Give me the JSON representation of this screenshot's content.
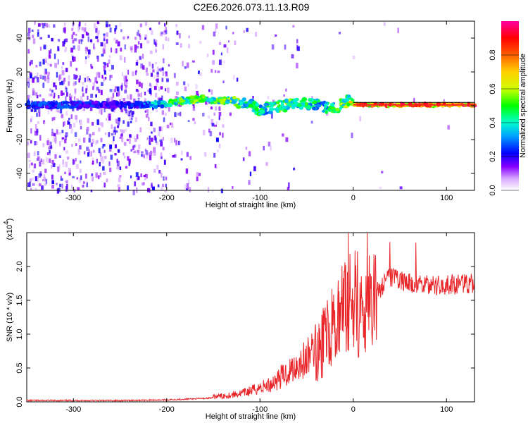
{
  "title": "C2E6.2026.073.11.13.R09",
  "chart_data": [
    {
      "type": "heatmap",
      "description_values": "spectrogram of frequency vs height; amplitude normalized 0-1",
      "xlabel": "Height of straight line (km)",
      "ylabel": "Frequency (Hz)",
      "xlim": [
        -350,
        130
      ],
      "ylim": [
        -50,
        50
      ],
      "xticks": [
        -300,
        -200,
        -100,
        0,
        100
      ],
      "yticks": [
        -40,
        -20,
        0,
        20,
        40
      ],
      "grid": false,
      "colorbar": {
        "label": "Normalized spectral amplitude",
        "range": [
          0,
          1
        ],
        "ticks": [
          "0.0",
          "0.2",
          "0.4",
          "0.6",
          "0.8"
        ],
        "colors": [
          "#ffffff",
          "#d8a8ff",
          "#8800ff",
          "#0000ff",
          "#00a0ff",
          "#00ffd0",
          "#00ff00",
          "#d0ff00",
          "#ffd000",
          "#ff6000",
          "#ff0000",
          "#ff00a0"
        ]
      },
      "ridge": {
        "x": [
          -350,
          -300,
          -250,
          -220,
          -200,
          -180,
          -160,
          -150,
          -130,
          -110,
          -100,
          -90,
          -75,
          -60,
          -45,
          -30,
          -15,
          -5,
          0,
          20,
          60,
          130
        ],
        "y": [
          0.5,
          0.5,
          0.5,
          0.5,
          1.5,
          3,
          4,
          3.5,
          2.5,
          1,
          -3,
          -1,
          0,
          1,
          1.5,
          -1,
          0,
          3,
          1,
          0.5,
          0.5,
          0.5
        ],
        "amplitude": [
          0.25,
          0.25,
          0.2,
          0.3,
          0.45,
          0.5,
          0.55,
          0.5,
          0.5,
          0.45,
          0.45,
          0.4,
          0.5,
          0.5,
          0.45,
          0.4,
          0.5,
          0.55,
          0.7,
          0.8,
          0.85,
          0.85
        ]
      }
    },
    {
      "type": "line",
      "xlabel": "Height of straight line (km)",
      "ylabel": "SNR (10 * v/v)",
      "y_multiplier_label": "(x10",
      "y_multiplier_exponent": "4",
      "y_multiplier_close": ")",
      "xlim": [
        -350,
        130
      ],
      "ylim": [
        0,
        2.5
      ],
      "xticks": [
        -300,
        -200,
        -100,
        0,
        100
      ],
      "yticks": [
        "0.0",
        "0.5",
        "1.0",
        "1.5",
        "2.0"
      ],
      "grid": false,
      "color": "#e8262a",
      "series": [
        {
          "x": [
            -350,
            -300,
            -250,
            -200,
            -180,
            -160,
            -140,
            -120,
            -110,
            -100,
            -90,
            -80,
            -70,
            -60,
            -50,
            -40,
            -30,
            -20,
            -10,
            0,
            10,
            20,
            30,
            40,
            50,
            60,
            70,
            80,
            90,
            100,
            110,
            120,
            130
          ],
          "y": [
            0.02,
            0.02,
            0.02,
            0.03,
            0.04,
            0.05,
            0.07,
            0.1,
            0.13,
            0.17,
            0.2,
            0.28,
            0.35,
            0.45,
            0.5,
            0.7,
            0.95,
            1.15,
            1.35,
            1.5,
            1.25,
            1.55,
            1.7,
            1.85,
            1.8,
            1.75,
            1.72,
            1.72,
            1.72,
            1.73,
            1.73,
            1.74,
            1.75
          ]
        }
      ]
    }
  ],
  "fig_labels": {
    "xtick_labels": [
      "-300",
      "-200",
      "-100",
      "0",
      "100"
    ],
    "top_ytick_labels": [
      "40",
      "20",
      "0",
      "-20",
      "-40"
    ]
  }
}
